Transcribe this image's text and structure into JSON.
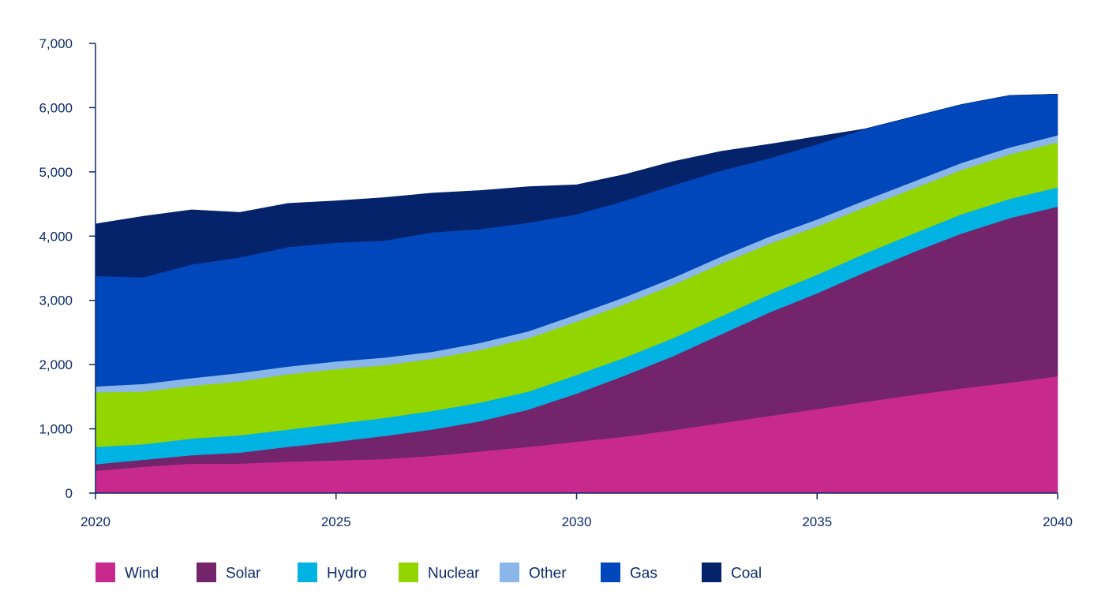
{
  "chart_data": {
    "type": "area",
    "stacked": true,
    "x": [
      2020,
      2021,
      2022,
      2023,
      2024,
      2025,
      2026,
      2027,
      2028,
      2029,
      2030,
      2031,
      2032,
      2033,
      2034,
      2035,
      2036,
      2037,
      2038,
      2039,
      2040
    ],
    "x_ticks": [
      "2020",
      "2025",
      "2030",
      "2035",
      "2040"
    ],
    "y_ticks": [
      "0",
      "1,000",
      "2,000",
      "3,000",
      "4,000",
      "5,000",
      "6,000",
      "7,000"
    ],
    "xlim": [
      2020,
      2040
    ],
    "ylim": [
      0,
      7000
    ],
    "title": "",
    "xlabel": "",
    "ylabel": "",
    "grid": false,
    "legend_position": "bottom",
    "series": [
      {
        "name": "Wind",
        "color": "#c72a8c",
        "values": [
          350,
          410,
          460,
          460,
          490,
          510,
          530,
          580,
          650,
          720,
          800,
          880,
          980,
          1090,
          1200,
          1310,
          1420,
          1530,
          1630,
          1720,
          1820
        ]
      },
      {
        "name": "Solar",
        "color": "#73246a",
        "values": [
          100,
          110,
          130,
          170,
          230,
          290,
          360,
          410,
          470,
          580,
          750,
          950,
          1150,
          1380,
          1610,
          1800,
          2020,
          2220,
          2410,
          2560,
          2640
        ]
      },
      {
        "name": "Hydro",
        "color": "#00b3e3",
        "values": [
          270,
          240,
          260,
          270,
          270,
          280,
          280,
          290,
          290,
          280,
          290,
          280,
          280,
          280,
          280,
          290,
          290,
          290,
          300,
          300,
          300
        ]
      },
      {
        "name": "Nuclear",
        "color": "#93d500",
        "values": [
          850,
          820,
          820,
          840,
          860,
          850,
          820,
          810,
          820,
          830,
          830,
          830,
          830,
          820,
          790,
          750,
          720,
          700,
          690,
          690,
          700
        ]
      },
      {
        "name": "Other",
        "color": "#8ab6ea",
        "values": [
          90,
          120,
          120,
          130,
          120,
          120,
          120,
          110,
          110,
          110,
          110,
          110,
          110,
          110,
          110,
          110,
          110,
          110,
          110,
          110,
          110
        ]
      },
      {
        "name": "Gas",
        "color": "#0047bb",
        "values": [
          1720,
          1660,
          1770,
          1800,
          1860,
          1850,
          1820,
          1860,
          1770,
          1690,
          1560,
          1500,
          1440,
          1340,
          1220,
          1170,
          1110,
          1010,
          910,
          810,
          640
        ]
      },
      {
        "name": "Coal",
        "color": "#04236b",
        "values": [
          810,
          950,
          850,
          700,
          680,
          650,
          670,
          610,
          600,
          560,
          460,
          410,
          370,
          300,
          220,
          120,
          0,
          0,
          0,
          0,
          0
        ]
      }
    ]
  }
}
